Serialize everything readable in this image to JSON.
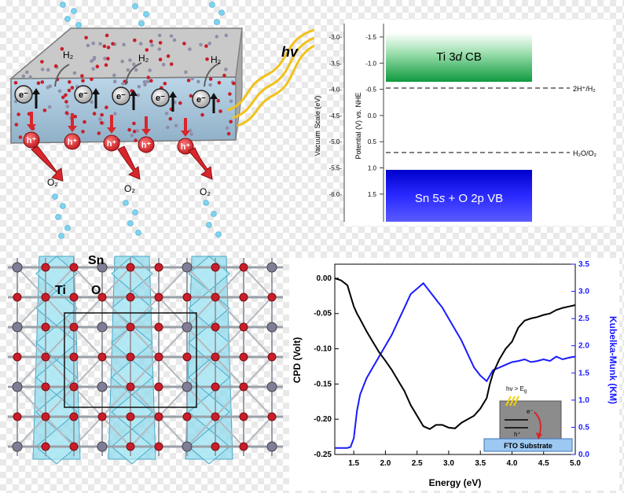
{
  "colors": {
    "cb": "#1aa64a",
    "vb": "#1a1aff",
    "kubelka": "#1a1aff",
    "cpd": "#000000",
    "hole": "#d8262c",
    "electron": "#222222"
  },
  "photo_panel": {
    "light_label": "hv",
    "h2_label": "H₂",
    "o2_label": "O₂",
    "electron_label": "e⁻",
    "hole_label": "h⁺"
  },
  "band_panel": {
    "vacuum_axis_label": "Vacuum Scale (eV)",
    "nhe_axis_label": "Potential (V) vs. NHE",
    "vacuum_ticks": [
      "-3.0-",
      "-3.5-",
      "-4.0-",
      "-4.5-",
      "-5.0-",
      "-5.5-",
      "-6.0-"
    ],
    "nhe_ticks": [
      "-1.5",
      "-1.0",
      "-0.5",
      "0.0",
      "0.5",
      "1.0",
      "1.5"
    ],
    "cb_label_pre": "Ti 3",
    "cb_label_d": "d",
    "cb_label_post": " CB",
    "vb_label_pre": "Sn 5",
    "vb_label_s": "s",
    "vb_label_post": " + O 2p VB",
    "h_label": "2H⁺/H₂",
    "o_label": "H₂O/O₂"
  },
  "crystal_panel": {
    "sn_label": "Sn",
    "ti_label": "Ti",
    "o_label": "O"
  },
  "chart_data": {
    "type": "line",
    "xlabel": "Energy (eV)",
    "ylabel": "CPD (Volt)",
    "y2label": "Kubelka-Munk (KM)",
    "xlim": [
      1.2,
      5.0
    ],
    "ylim": [
      -0.25,
      0.02
    ],
    "y2lim": [
      0.0,
      3.5
    ],
    "x_ticks": [
      "1.5",
      "2.0",
      "2.5",
      "3.0",
      "3.5",
      "4.0",
      "4.5",
      "5.0"
    ],
    "y_ticks": [
      "0.00",
      "-0.05",
      "-0.10",
      "-0.15",
      "-0.20",
      "-0.25"
    ],
    "y2_ticks": [
      "0.0",
      "0.5",
      "1.0",
      "1.5",
      "2.0",
      "2.5",
      "3.0",
      "3.5"
    ],
    "series": [
      {
        "name": "CPD",
        "axis": "left",
        "x": [
          1.2,
          1.3,
          1.4,
          1.45,
          1.5,
          1.55,
          1.6,
          1.7,
          1.8,
          1.9,
          2.0,
          2.1,
          2.2,
          2.3,
          2.4,
          2.5,
          2.6,
          2.7,
          2.8,
          2.9,
          3.0,
          3.1,
          3.2,
          3.3,
          3.4,
          3.5,
          3.6,
          3.65,
          3.7,
          3.75,
          3.8,
          3.9,
          4.0,
          4.1,
          4.2,
          4.3,
          4.4,
          4.5,
          4.6,
          4.7,
          4.8,
          4.9,
          5.0
        ],
        "y": [
          0.0,
          -0.003,
          -0.01,
          -0.025,
          -0.04,
          -0.05,
          -0.058,
          -0.075,
          -0.09,
          -0.105,
          -0.117,
          -0.13,
          -0.145,
          -0.16,
          -0.18,
          -0.195,
          -0.21,
          -0.214,
          -0.208,
          -0.208,
          -0.212,
          -0.213,
          -0.205,
          -0.2,
          -0.195,
          -0.185,
          -0.17,
          -0.15,
          -0.135,
          -0.125,
          -0.115,
          -0.1,
          -0.09,
          -0.07,
          -0.06,
          -0.057,
          -0.055,
          -0.052,
          -0.05,
          -0.045,
          -0.042,
          -0.04,
          -0.038
        ]
      },
      {
        "name": "Kubelka-Munk",
        "axis": "right",
        "x": [
          1.2,
          1.3,
          1.4,
          1.45,
          1.5,
          1.55,
          1.6,
          1.7,
          1.8,
          1.9,
          2.0,
          2.1,
          2.2,
          2.3,
          2.4,
          2.5,
          2.6,
          2.7,
          2.8,
          2.9,
          3.0,
          3.1,
          3.2,
          3.3,
          3.4,
          3.5,
          3.6,
          3.7,
          3.8,
          3.9,
          4.0,
          4.1,
          4.2,
          4.3,
          4.4,
          4.5,
          4.6,
          4.7,
          4.8,
          4.9,
          5.0
        ],
        "y": [
          0.12,
          0.12,
          0.12,
          0.14,
          0.3,
          0.8,
          1.1,
          1.4,
          1.6,
          1.8,
          2.0,
          2.2,
          2.45,
          2.7,
          2.95,
          3.05,
          3.15,
          3.0,
          2.85,
          2.7,
          2.5,
          2.3,
          2.1,
          1.85,
          1.6,
          1.45,
          1.35,
          1.55,
          1.6,
          1.65,
          1.7,
          1.72,
          1.75,
          1.7,
          1.72,
          1.75,
          1.72,
          1.8,
          1.75,
          1.78,
          1.8
        ]
      }
    ],
    "inset": {
      "light_label": "hv > E",
      "light_sub": "g",
      "electron_label": "e⁻",
      "hole_label": "h⁺",
      "substrate_label": "FTO Substrate"
    }
  }
}
